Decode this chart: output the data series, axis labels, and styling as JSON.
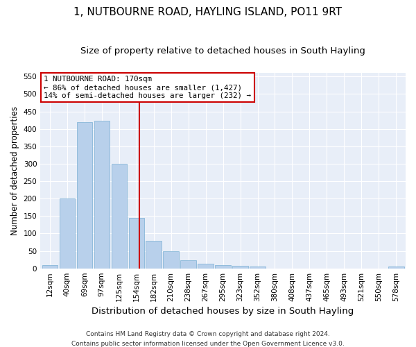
{
  "title": "1, NUTBOURNE ROAD, HAYLING ISLAND, PO11 9RT",
  "subtitle": "Size of property relative to detached houses in South Hayling",
  "xlabel": "Distribution of detached houses by size in South Hayling",
  "ylabel": "Number of detached properties",
  "footer1": "Contains HM Land Registry data © Crown copyright and database right 2024.",
  "footer2": "Contains public sector information licensed under the Open Government Licence v3.0.",
  "bin_labels": [
    "12sqm",
    "40sqm",
    "69sqm",
    "97sqm",
    "125sqm",
    "154sqm",
    "182sqm",
    "210sqm",
    "238sqm",
    "267sqm",
    "295sqm",
    "323sqm",
    "352sqm",
    "380sqm",
    "408sqm",
    "437sqm",
    "465sqm",
    "493sqm",
    "521sqm",
    "550sqm",
    "578sqm"
  ],
  "bar_values": [
    10,
    200,
    420,
    423,
    300,
    145,
    78,
    49,
    24,
    14,
    10,
    7,
    5,
    0,
    0,
    0,
    0,
    0,
    0,
    0,
    5
  ],
  "bar_color": "#b8d0eb",
  "bar_edge_color": "#7aafd4",
  "property_line_x": 5.18,
  "vline_color": "#cc0000",
  "annotation_text": "1 NUTBOURNE ROAD: 170sqm\n← 86% of detached houses are smaller (1,427)\n14% of semi-detached houses are larger (232) →",
  "annotation_box_color": "#ffffff",
  "annotation_box_edge": "#cc0000",
  "ylim": [
    0,
    560
  ],
  "yticks": [
    0,
    50,
    100,
    150,
    200,
    250,
    300,
    350,
    400,
    450,
    500,
    550
  ],
  "background_color": "#e8eef8",
  "fig_background": "#ffffff",
  "grid_color": "#ffffff",
  "title_fontsize": 11,
  "subtitle_fontsize": 9.5,
  "xlabel_fontsize": 9.5,
  "ylabel_fontsize": 8.5,
  "tick_fontsize": 7.5,
  "footer_fontsize": 6.5
}
